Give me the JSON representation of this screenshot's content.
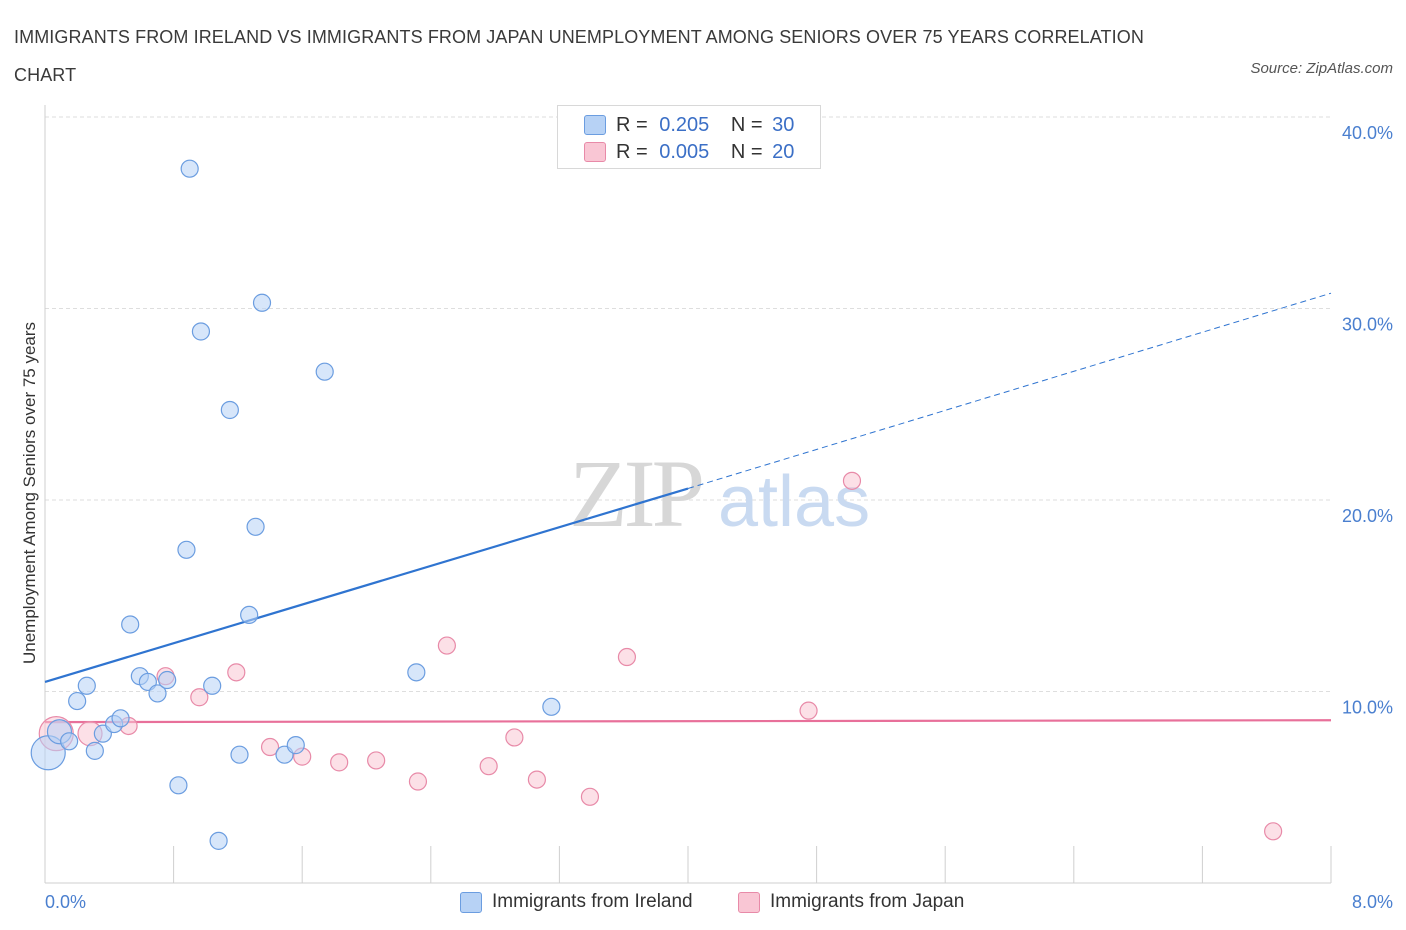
{
  "header": {
    "title": "IMMIGRANTS FROM IRELAND VS IMMIGRANTS FROM JAPAN UNEMPLOYMENT AMONG SENIORS OVER 75 YEARS CORRELATION CHART",
    "source": "Source: ZipAtlas.com"
  },
  "legend": {
    "series1": {
      "r_label": "R =",
      "r_value": "0.205",
      "n_label": "N =",
      "n_value": "30"
    },
    "series2": {
      "r_label": "R =",
      "r_value": "0.005",
      "n_label": "N =",
      "n_value": "20"
    }
  },
  "watermark": {
    "zip": "ZIP",
    "atlas": "atlas"
  },
  "colors": {
    "ireland_fill": "#b7d2f5",
    "ireland_stroke": "#6b9de0",
    "ireland_line": "#2f74d0",
    "japan_fill": "#f9c6d4",
    "japan_stroke": "#e88aa8",
    "japan_line": "#e8709a",
    "grid": "#dedede",
    "axis_tick_text": "#4a7fcf"
  },
  "chart_data": {
    "type": "scatter",
    "title": "IMMIGRANTS FROM IRELAND VS IMMIGRANTS FROM JAPAN UNEMPLOYMENT AMONG SENIORS OVER 75 YEARS CORRELATION CHART",
    "xlabel": "",
    "ylabel": "Unemployment Among Seniors over 75 years",
    "xlim": [
      0,
      8
    ],
    "ylim": [
      0,
      40
    ],
    "x_tick_labels": [
      "0.0%",
      "8.0%"
    ],
    "y_ticks": [
      10,
      20,
      30,
      40
    ],
    "y_tick_labels": [
      "10.0%",
      "20.0%",
      "30.0%",
      "40.0%"
    ],
    "legend_position": "bottom-center",
    "series": [
      {
        "name": "Immigrants from Ireland",
        "points": [
          {
            "x": 0.02,
            "y": 6.8,
            "size": "large"
          },
          {
            "x": 0.09,
            "y": 7.9,
            "size": "medium"
          },
          {
            "x": 0.15,
            "y": 7.4,
            "size": "normal"
          },
          {
            "x": 0.2,
            "y": 9.5,
            "size": "normal"
          },
          {
            "x": 0.26,
            "y": 10.3,
            "size": "normal"
          },
          {
            "x": 0.31,
            "y": 6.9,
            "size": "normal"
          },
          {
            "x": 0.36,
            "y": 7.8,
            "size": "normal"
          },
          {
            "x": 0.43,
            "y": 8.3,
            "size": "normal"
          },
          {
            "x": 0.47,
            "y": 8.6,
            "size": "normal"
          },
          {
            "x": 0.53,
            "y": 13.5,
            "size": "normal"
          },
          {
            "x": 0.59,
            "y": 10.8,
            "size": "normal"
          },
          {
            "x": 0.64,
            "y": 10.5,
            "size": "normal"
          },
          {
            "x": 0.7,
            "y": 9.9,
            "size": "normal"
          },
          {
            "x": 0.76,
            "y": 10.6,
            "size": "normal"
          },
          {
            "x": 0.83,
            "y": 5.1,
            "size": "normal"
          },
          {
            "x": 0.88,
            "y": 17.4,
            "size": "normal"
          },
          {
            "x": 0.9,
            "y": 37.3,
            "size": "normal"
          },
          {
            "x": 0.97,
            "y": 28.8,
            "size": "normal"
          },
          {
            "x": 1.04,
            "y": 10.3,
            "size": "normal"
          },
          {
            "x": 1.08,
            "y": 2.2,
            "size": "normal"
          },
          {
            "x": 1.15,
            "y": 24.7,
            "size": "normal"
          },
          {
            "x": 1.21,
            "y": 6.7,
            "size": "normal"
          },
          {
            "x": 1.27,
            "y": 14.0,
            "size": "normal"
          },
          {
            "x": 1.31,
            "y": 18.6,
            "size": "normal"
          },
          {
            "x": 1.35,
            "y": 30.3,
            "size": "normal"
          },
          {
            "x": 1.49,
            "y": 6.7,
            "size": "normal"
          },
          {
            "x": 1.56,
            "y": 7.2,
            "size": "normal"
          },
          {
            "x": 1.74,
            "y": 26.7,
            "size": "normal"
          },
          {
            "x": 2.31,
            "y": 11.0,
            "size": "normal"
          },
          {
            "x": 3.15,
            "y": 9.2,
            "size": "normal"
          }
        ],
        "trend": {
          "x0": 0,
          "y0": 10.5,
          "x1_solid": 4.0,
          "y1_solid": 20.6,
          "x1_dashed": 8.0,
          "y1_dashed": 30.8
        }
      },
      {
        "name": "Immigrants from Japan",
        "points": [
          {
            "x": 0.07,
            "y": 7.8,
            "size": "large"
          },
          {
            "x": 0.28,
            "y": 7.8,
            "size": "medium"
          },
          {
            "x": 0.52,
            "y": 8.2,
            "size": "normal"
          },
          {
            "x": 0.75,
            "y": 10.8,
            "size": "normal"
          },
          {
            "x": 0.96,
            "y": 9.7,
            "size": "normal"
          },
          {
            "x": 1.19,
            "y": 11.0,
            "size": "normal"
          },
          {
            "x": 1.4,
            "y": 7.1,
            "size": "normal"
          },
          {
            "x": 1.6,
            "y": 6.6,
            "size": "normal"
          },
          {
            "x": 1.83,
            "y": 6.3,
            "size": "normal"
          },
          {
            "x": 2.06,
            "y": 6.4,
            "size": "normal"
          },
          {
            "x": 2.32,
            "y": 5.3,
            "size": "normal"
          },
          {
            "x": 2.5,
            "y": 12.4,
            "size": "normal"
          },
          {
            "x": 2.76,
            "y": 6.1,
            "size": "normal"
          },
          {
            "x": 2.92,
            "y": 7.6,
            "size": "normal"
          },
          {
            "x": 3.06,
            "y": 5.4,
            "size": "normal"
          },
          {
            "x": 3.39,
            "y": 4.5,
            "size": "normal"
          },
          {
            "x": 3.62,
            "y": 11.8,
            "size": "normal"
          },
          {
            "x": 4.75,
            "y": 9.0,
            "size": "normal"
          },
          {
            "x": 5.02,
            "y": 21.0,
            "size": "normal"
          },
          {
            "x": 7.64,
            "y": 2.7,
            "size": "normal"
          }
        ],
        "trend": {
          "x0": 0,
          "y0": 8.4,
          "x1": 8.0,
          "y1": 8.5
        }
      }
    ]
  }
}
